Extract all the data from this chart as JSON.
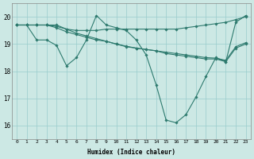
{
  "xlabel": "Humidex (Indice chaleur)",
  "xlim": [
    -0.5,
    23.5
  ],
  "ylim": [
    15.5,
    20.5
  ],
  "yticks": [
    16,
    17,
    18,
    19,
    20
  ],
  "xticks": [
    0,
    1,
    2,
    3,
    4,
    5,
    6,
    7,
    8,
    9,
    10,
    11,
    12,
    13,
    14,
    15,
    16,
    17,
    18,
    19,
    20,
    21,
    22,
    23
  ],
  "bg_color": "#cce8e4",
  "grid_color": "#99cccc",
  "line_color": "#2d7a6e",
  "line_width": 0.8,
  "marker": "D",
  "marker_size": 1.8,
  "series": [
    [
      19.7,
      19.7,
      19.15,
      19.15,
      18.95,
      18.2,
      18.5,
      19.15,
      20.05,
      19.7,
      19.6,
      19.5,
      19.15,
      18.6,
      17.5,
      16.2,
      16.1,
      16.4,
      17.05,
      17.8,
      18.5,
      18.35,
      19.8,
      20.05
    ],
    [
      19.7,
      19.7,
      19.7,
      19.7,
      19.7,
      19.55,
      19.4,
      19.3,
      19.2,
      19.1,
      19.0,
      18.9,
      18.85,
      18.8,
      18.75,
      18.65,
      18.6,
      18.55,
      18.5,
      18.45,
      18.45,
      18.35,
      18.85,
      19.0
    ],
    [
      19.7,
      19.7,
      19.7,
      19.7,
      19.65,
      19.55,
      19.5,
      19.5,
      19.5,
      19.55,
      19.55,
      19.55,
      19.55,
      19.55,
      19.55,
      19.55,
      19.55,
      19.6,
      19.65,
      19.7,
      19.75,
      19.8,
      19.9,
      20.0
    ],
    [
      19.7,
      19.7,
      19.7,
      19.7,
      19.6,
      19.45,
      19.35,
      19.25,
      19.15,
      19.1,
      19.0,
      18.92,
      18.85,
      18.8,
      18.75,
      18.7,
      18.65,
      18.6,
      18.55,
      18.5,
      18.48,
      18.4,
      18.9,
      19.05
    ]
  ]
}
